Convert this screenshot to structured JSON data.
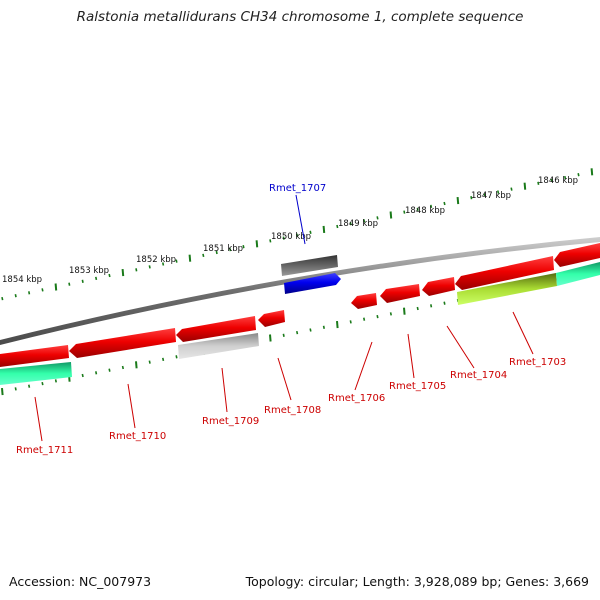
{
  "title": "Ralstonia metallidurans CH34 chromosome 1, complete sequence",
  "footer": {
    "accession": "Accession: NC_007973",
    "topology": "Topology: circular; Length: 3,928,089 bp; Genes: 3,669"
  },
  "colors": {
    "gene_label": "#cc0000",
    "selected_label": "#0000cc",
    "cds": "#ee0000",
    "selected": "#0000ee",
    "tick": "#1a7a1a",
    "backbone": "#777777",
    "alt_green": "#22dd99",
    "alt_lime": "#bbee44",
    "alt_gray": "#b8b8b8"
  },
  "kbp_labels": [
    "1846 kbp",
    "1847 kbp",
    "1848 kbp",
    "1849 kbp",
    "1850 kbp",
    "1851 kbp",
    "1852 kbp",
    "1853 kbp",
    "1854 kbp"
  ],
  "genes": [
    {
      "name": "Rmet_1707",
      "selected": true
    },
    {
      "name": "Rmet_1703"
    },
    {
      "name": "Rmet_1704"
    },
    {
      "name": "Rmet_1705"
    },
    {
      "name": "Rmet_1706"
    },
    {
      "name": "Rmet_1708"
    },
    {
      "name": "Rmet_1709"
    },
    {
      "name": "Rmet_1710"
    },
    {
      "name": "Rmet_1711"
    }
  ]
}
